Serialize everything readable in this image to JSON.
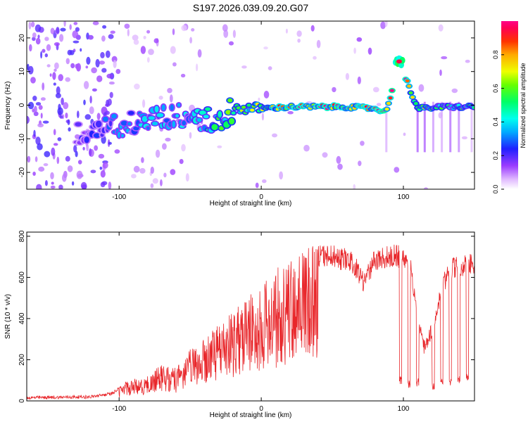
{
  "chart_data": [
    {
      "type": "heatmap",
      "title": "S197.2026.039.09.20.G07",
      "xlabel": "Height of straight line (km)",
      "ylabel": "Frequency (Hz)",
      "xlim": [
        -165,
        150
      ],
      "ylim": [
        -25,
        25
      ],
      "x_ticks": [
        -100,
        0,
        100
      ],
      "x_tick_labels": [
        "-100",
        "0",
        "100"
      ],
      "y_ticks": [
        -20,
        -10,
        0,
        10,
        20
      ],
      "y_tick_labels": [
        "-20",
        "-10",
        "0",
        "10",
        "20"
      ],
      "colorbar": {
        "label": "Normalized spectral amplitude",
        "range": [
          0,
          1
        ],
        "ticks": [
          0.0,
          0.2,
          0.4,
          0.6,
          0.8
        ],
        "tick_labels": [
          "0.0",
          "0.2",
          "0.4",
          "0.6",
          "0.8"
        ]
      },
      "ridge": [
        {
          "x": -125,
          "freq": -9,
          "amp": 0.2
        },
        {
          "x": -100,
          "freq": -6,
          "amp": 0.3
        },
        {
          "x": -80,
          "freq": -4,
          "amp": 0.35
        },
        {
          "x": -60,
          "freq": -3,
          "amp": 0.35
        },
        {
          "x": -40,
          "freq": -4,
          "amp": 0.4
        },
        {
          "x": -30,
          "freq": -5,
          "amp": 0.5
        },
        {
          "x": -20,
          "freq": -1,
          "amp": 0.55
        },
        {
          "x": 0,
          "freq": -1,
          "amp": 0.65
        },
        {
          "x": 20,
          "freq": -0.5,
          "amp": 0.85
        },
        {
          "x": 40,
          "freq": -0.5,
          "amp": 0.85
        },
        {
          "x": 60,
          "freq": -0.5,
          "amp": 0.8
        },
        {
          "x": 80,
          "freq": -1,
          "amp": 0.85
        },
        {
          "x": 88,
          "freq": -2,
          "amp": 0.9
        },
        {
          "x": 97,
          "freq": 13,
          "amp": 0.95
        },
        {
          "x": 110,
          "freq": -1,
          "amp": 0.6
        },
        {
          "x": 130,
          "freq": -0.5,
          "amp": 0.5
        },
        {
          "x": 150,
          "freq": -0.5,
          "amp": 0.5
        }
      ]
    },
    {
      "type": "line",
      "xlabel": "Height of straight line (km)",
      "ylabel": "SNR (10 * v/v)",
      "xlim": [
        -165,
        150
      ],
      "ylim": [
        0,
        820
      ],
      "x_ticks": [
        -100,
        0,
        100
      ],
      "x_tick_labels": [
        "-100",
        "0",
        "100"
      ],
      "y_ticks": [
        0,
        200,
        400,
        600,
        800
      ],
      "y_tick_labels": [
        "0",
        "200",
        "400",
        "600",
        "800"
      ],
      "series": [
        {
          "name": "SNR",
          "color": "#e8262a",
          "envelope": [
            {
              "x": -165,
              "y": 20
            },
            {
              "x": -120,
              "y": 25
            },
            {
              "x": -105,
              "y": 40
            },
            {
              "x": -95,
              "y": 100
            },
            {
              "x": -80,
              "y": 120
            },
            {
              "x": -70,
              "y": 180
            },
            {
              "x": -60,
              "y": 160
            },
            {
              "x": -50,
              "y": 250
            },
            {
              "x": -40,
              "y": 300
            },
            {
              "x": -30,
              "y": 380
            },
            {
              "x": -20,
              "y": 440
            },
            {
              "x": -10,
              "y": 520
            },
            {
              "x": 0,
              "y": 560
            },
            {
              "x": 10,
              "y": 640
            },
            {
              "x": 20,
              "y": 700
            },
            {
              "x": 30,
              "y": 740
            },
            {
              "x": 40,
              "y": 760
            },
            {
              "x": 50,
              "y": 760
            },
            {
              "x": 60,
              "y": 740
            },
            {
              "x": 65,
              "y": 720
            },
            {
              "x": 68,
              "y": 680
            },
            {
              "x": 72,
              "y": 620
            },
            {
              "x": 76,
              "y": 680
            },
            {
              "x": 80,
              "y": 740
            },
            {
              "x": 90,
              "y": 760
            },
            {
              "x": 97,
              "y": 760
            },
            {
              "x": 105,
              "y": 700
            },
            {
              "x": 110,
              "y": 420
            },
            {
              "x": 115,
              "y": 250
            },
            {
              "x": 120,
              "y": 350
            },
            {
              "x": 128,
              "y": 620
            },
            {
              "x": 135,
              "y": 700
            },
            {
              "x": 150,
              "y": 720
            }
          ],
          "dropouts": [
            {
              "x": 98,
              "y": 100
            },
            {
              "x": 104,
              "y": 80
            },
            {
              "x": 110,
              "y": 90
            },
            {
              "x": 121,
              "y": 70
            },
            {
              "x": 127,
              "y": 100
            },
            {
              "x": 133,
              "y": 90
            },
            {
              "x": 139,
              "y": 100
            },
            {
              "x": 145,
              "y": 120
            }
          ]
        }
      ]
    }
  ]
}
